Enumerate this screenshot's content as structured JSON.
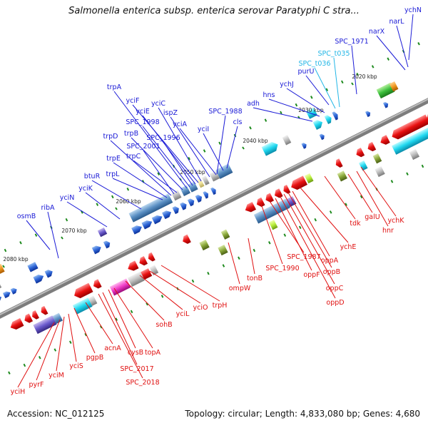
{
  "title": "Salmonella enterica subsp. enterica serovar Paratyphi C stra...",
  "footer": {
    "accession": "Accession: NC_012125",
    "summary": "Topology: circular; Length: 4,833,080 bp; Genes: 4,680"
  },
  "colors": {
    "forward_label": "#1a1ad6",
    "reverse_label": "#e01010",
    "trna_label": "#22b6e6",
    "backbone": "#8c8c8c",
    "tick": "#1d8a1d"
  },
  "kbp_markers": [
    "2020 kbp",
    "2030 kbp",
    "2040 kbp",
    "2050 kbp",
    "2060 kbp",
    "2070 kbp",
    "2080 kbp"
  ],
  "forward_genes": [
    "ychN",
    "narL",
    "narX",
    "SPC_1971",
    "purU",
    "ychJ",
    "hns",
    "adh",
    "cls",
    "yciI",
    "SPC_1988",
    "yciA",
    "ispZ",
    "yciC",
    "yciF",
    "yciE",
    "SPC_1996",
    "SPC_1998",
    "trpA",
    "trpB",
    "trpC",
    "SPC_2001",
    "trpD",
    "trpE",
    "trpL",
    "btuR",
    "yciK",
    "yciN",
    "ribA",
    "osmB"
  ],
  "trna_genes": [
    "SPC_t035",
    "SPC_t036"
  ],
  "reverse_genes": [
    "ychK",
    "hnr",
    "galU",
    "tdk",
    "ychE",
    "oppA",
    "oppB",
    "oppC",
    "oppD",
    "oppF",
    "SPC_1987",
    "SPC_1990",
    "tonB",
    "ompW",
    "trpH",
    "yciO",
    "yciL",
    "sohB",
    "topA",
    "cysB",
    "SPC_2017",
    "SPC_2018",
    "acnA",
    "pgpB",
    "yciS",
    "yciM",
    "pyrF",
    "yciH"
  ]
}
